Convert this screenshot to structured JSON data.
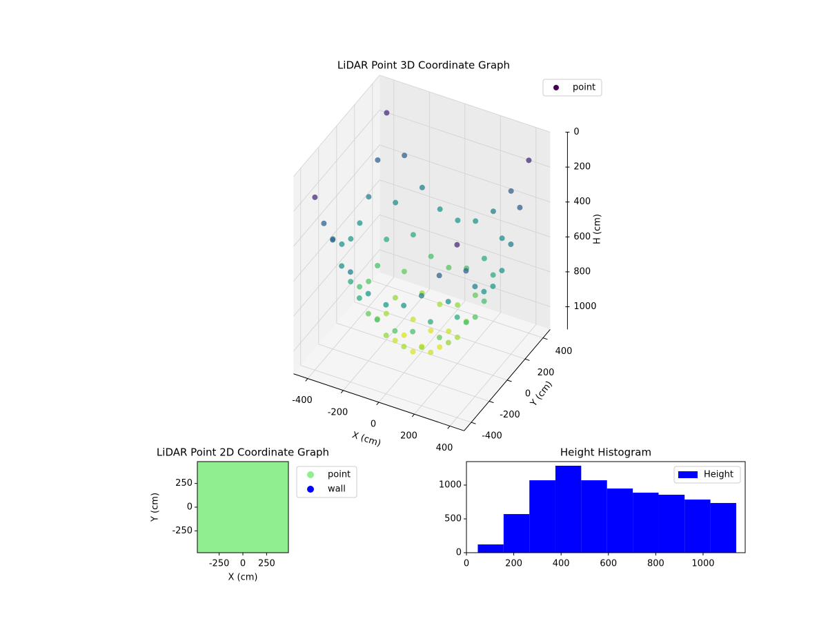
{
  "chart_data": [
    {
      "type": "scatter3d",
      "title": "LiDAR Point 3D Coordinate Graph",
      "x_label": "X (cm)",
      "y_label": "Y (cm)",
      "z_label": "H (cm)",
      "xlim": [
        -480,
        480
      ],
      "ylim": [
        -480,
        480
      ],
      "zlim": [
        0,
        1130
      ],
      "z_inverted": true,
      "xticks": [
        -400,
        -200,
        0,
        200,
        400
      ],
      "yticks": [
        -400,
        -200,
        0,
        200,
        400
      ],
      "zticks": [
        0,
        200,
        400,
        600,
        800,
        1000
      ],
      "colormap": "viridis",
      "legend": "upper right",
      "grid": true,
      "series": [
        {
          "name": "point",
          "color": "#440154",
          "x": [
            -400,
            -300,
            -200,
            -100,
            0,
            100,
            200,
            300,
            400,
            -400,
            -300,
            -200,
            -100,
            0,
            100,
            200,
            300,
            400,
            -400,
            -300,
            -200,
            -100,
            0,
            100,
            200,
            300,
            400,
            -400,
            -300,
            -200,
            -100,
            0,
            100,
            200,
            300,
            400,
            -400,
            -300,
            -200,
            -100,
            0,
            100,
            200,
            300,
            400,
            -400,
            -300,
            -200,
            -100,
            0,
            100,
            200,
            300,
            400,
            -400,
            -300,
            -200,
            -100,
            0,
            100,
            200,
            300,
            400,
            -400,
            -300,
            -200,
            -100,
            0,
            100,
            200,
            300,
            400,
            -400,
            -300,
            -200,
            -100,
            0,
            100,
            200,
            300,
            400
          ],
          "y": [
            400,
            400,
            400,
            400,
            400,
            400,
            400,
            400,
            400,
            300,
            300,
            300,
            300,
            300,
            300,
            300,
            300,
            300,
            200,
            200,
            200,
            200,
            200,
            200,
            200,
            200,
            200,
            100,
            100,
            100,
            100,
            100,
            100,
            100,
            100,
            100,
            0,
            0,
            0,
            0,
            0,
            0,
            0,
            0,
            0,
            -100,
            -100,
            -100,
            -100,
            -100,
            -100,
            -100,
            -100,
            -100,
            -200,
            -200,
            -200,
            -200,
            -200,
            -200,
            -200,
            -200,
            -200,
            -300,
            -300,
            -300,
            -300,
            -300,
            -300,
            -300,
            -300,
            -300,
            -400,
            -400,
            -400,
            -400,
            -400,
            -400,
            -400,
            -400,
            -400
          ],
          "z": [
            140,
            350,
            500,
            590,
            620,
            590,
            500,
            350,
            140,
            350,
            560,
            710,
            800,
            830,
            800,
            710,
            560,
            350,
            500,
            710,
            860,
            950,
            980,
            950,
            860,
            710,
            500,
            590,
            800,
            950,
            1040,
            1070,
            1040,
            950,
            800,
            590,
            620,
            830,
            980,
            1070,
            1100,
            1070,
            980,
            830,
            620,
            590,
            800,
            950,
            1040,
            1070,
            1040,
            950,
            800,
            590,
            500,
            710,
            860,
            950,
            980,
            950,
            860,
            710,
            500,
            350,
            560,
            710,
            800,
            830,
            800,
            710,
            560,
            350,
            140,
            350,
            500,
            590,
            620,
            590,
            500,
            350,
            140
          ]
        }
      ]
    },
    {
      "type": "scatter",
      "title": "LiDAR Point 2D Coordinate Graph",
      "x_label": "X (cm)",
      "y_label": "Y (cm)",
      "xlim": [
        -480,
        480
      ],
      "ylim": [
        -480,
        480
      ],
      "xticks": [
        -250,
        0,
        250
      ],
      "yticks": [
        -250,
        0,
        250
      ],
      "legend": "outside right",
      "series": [
        {
          "name": "point",
          "color": "#90ee90",
          "x": [
            -420,
            -280,
            -140,
            0,
            140,
            280,
            420,
            -420,
            -280,
            -140,
            0,
            140,
            280,
            420,
            -420,
            -280,
            -140,
            0,
            140,
            280,
            420,
            -420,
            -280,
            -140,
            0,
            140,
            280,
            420,
            -420,
            -280,
            -140,
            0,
            140,
            280,
            420,
            -420,
            -280,
            -140,
            0,
            140,
            280,
            420,
            -420,
            -280,
            -140,
            0,
            140,
            280,
            420
          ],
          "y": [
            420,
            420,
            420,
            420,
            420,
            420,
            420,
            280,
            280,
            280,
            280,
            280,
            280,
            280,
            140,
            140,
            140,
            140,
            140,
            140,
            140,
            0,
            0,
            0,
            0,
            0,
            0,
            0,
            -140,
            -140,
            -140,
            -140,
            -140,
            -140,
            -140,
            -280,
            -280,
            -280,
            -280,
            -280,
            -280,
            -280,
            -420,
            -420,
            -420,
            -420,
            -420,
            -420,
            -420
          ]
        },
        {
          "name": "wall",
          "color": "#0000ff",
          "x": [],
          "y": []
        }
      ]
    },
    {
      "type": "histogram",
      "title": "Height Histogram",
      "xlim": [
        0,
        1178
      ],
      "ylim": [
        0,
        1347
      ],
      "xticks": [
        0,
        200,
        400,
        600,
        800,
        1000
      ],
      "yticks": [
        0,
        500,
        1000
      ],
      "legend": "upper right",
      "series": [
        {
          "name": "Height",
          "color": "#0000ff",
          "bins": [
            48,
            157,
            266,
            376,
            485,
            594,
            703,
            812,
            922,
            1031,
            1140
          ],
          "values": [
            122,
            571,
            1071,
            1286,
            1071,
            949,
            888,
            857,
            786,
            735
          ]
        }
      ]
    }
  ]
}
